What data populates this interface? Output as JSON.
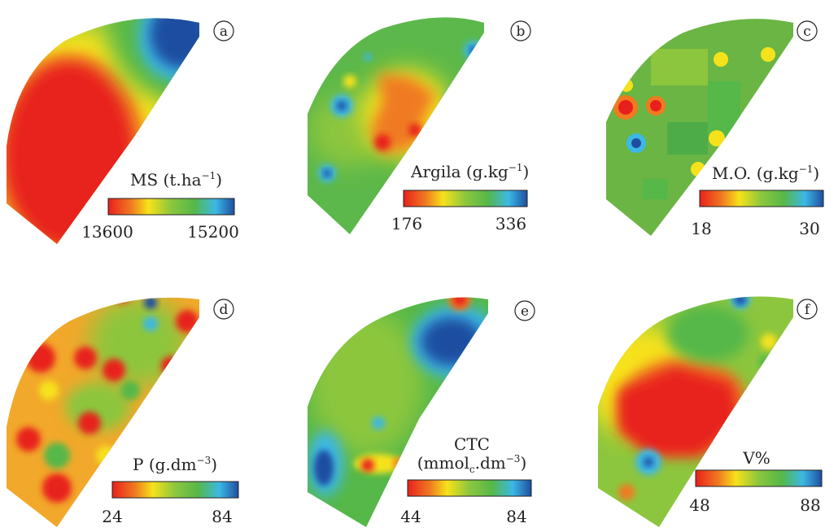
{
  "panels": [
    {
      "id": "a",
      "title": "MS (t.ha",
      "sup": "−1",
      "title_end": ")",
      "min": "13600",
      "max": "15200"
    },
    {
      "id": "b",
      "title": "Argila (g.kg",
      "sup": "−1",
      "title_end": ")",
      "min": "176",
      "max": "336"
    },
    {
      "id": "c",
      "title": "M.O. (g.kg",
      "sup": "−1",
      "title_end": ")",
      "min": "18",
      "max": "30"
    },
    {
      "id": "d",
      "title": "P (g.dm",
      "sup": "−3",
      "title_end": ")",
      "min": "24",
      "max": "84"
    },
    {
      "id": "e",
      "title": "CTC",
      "title2_a": "(mmol",
      "title2_sub": "c",
      "title2_b": ".dm",
      "sup": "−3",
      "title_end": ")",
      "min": "44",
      "max": "84"
    },
    {
      "id": "f",
      "title": "V%",
      "min": "48",
      "max": "88"
    }
  ],
  "colors": {
    "scale": [
      "#e8201c",
      "#f07020",
      "#f6e21a",
      "#9ccc3a",
      "#55b848",
      "#3cb8e6",
      "#1f4ea0"
    ],
    "field_base": "#5cb84a"
  }
}
